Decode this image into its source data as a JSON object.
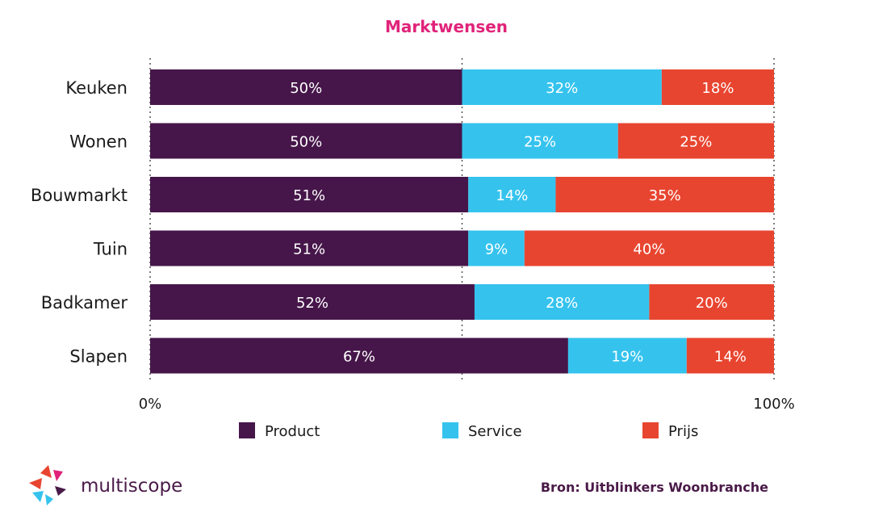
{
  "chart_data": {
    "type": "bar",
    "orientation": "horizontal",
    "stacked": true,
    "title": "Marktwensen",
    "categories": [
      "Keuken",
      "Wonen",
      "Bouwmarkt",
      "Tuin",
      "Badkamer",
      "Slapen"
    ],
    "series": [
      {
        "name": "Product",
        "color": "#46164a",
        "values": [
          50,
          50,
          51,
          51,
          52,
          67
        ]
      },
      {
        "name": "Service",
        "color": "#35c3ee",
        "values": [
          32,
          25,
          14,
          9,
          28,
          19
        ]
      },
      {
        "name": "Prijs",
        "color": "#e84530",
        "values": [
          18,
          25,
          35,
          40,
          20,
          14
        ]
      }
    ],
    "data_labels": [
      [
        "50%",
        "32%",
        "18%"
      ],
      [
        "50%",
        "25%",
        "25%"
      ],
      [
        "51%",
        "14%",
        "35%"
      ],
      [
        "51%",
        "9%",
        "40%"
      ],
      [
        "52%",
        "28%",
        "20%"
      ],
      [
        "67%",
        "19%",
        "14%"
      ]
    ],
    "xlim": [
      0,
      100
    ],
    "x_ticks": [
      {
        "value": 0,
        "label": "0%"
      },
      {
        "value": 100,
        "label": "100%"
      }
    ],
    "gridlines": [
      0,
      50,
      100
    ],
    "legend_position": "bottom"
  },
  "source": "Bron: Uitblinkers Woonbranche",
  "logo": {
    "text": "multiscope",
    "icon": "multiscope-logo-icon"
  }
}
